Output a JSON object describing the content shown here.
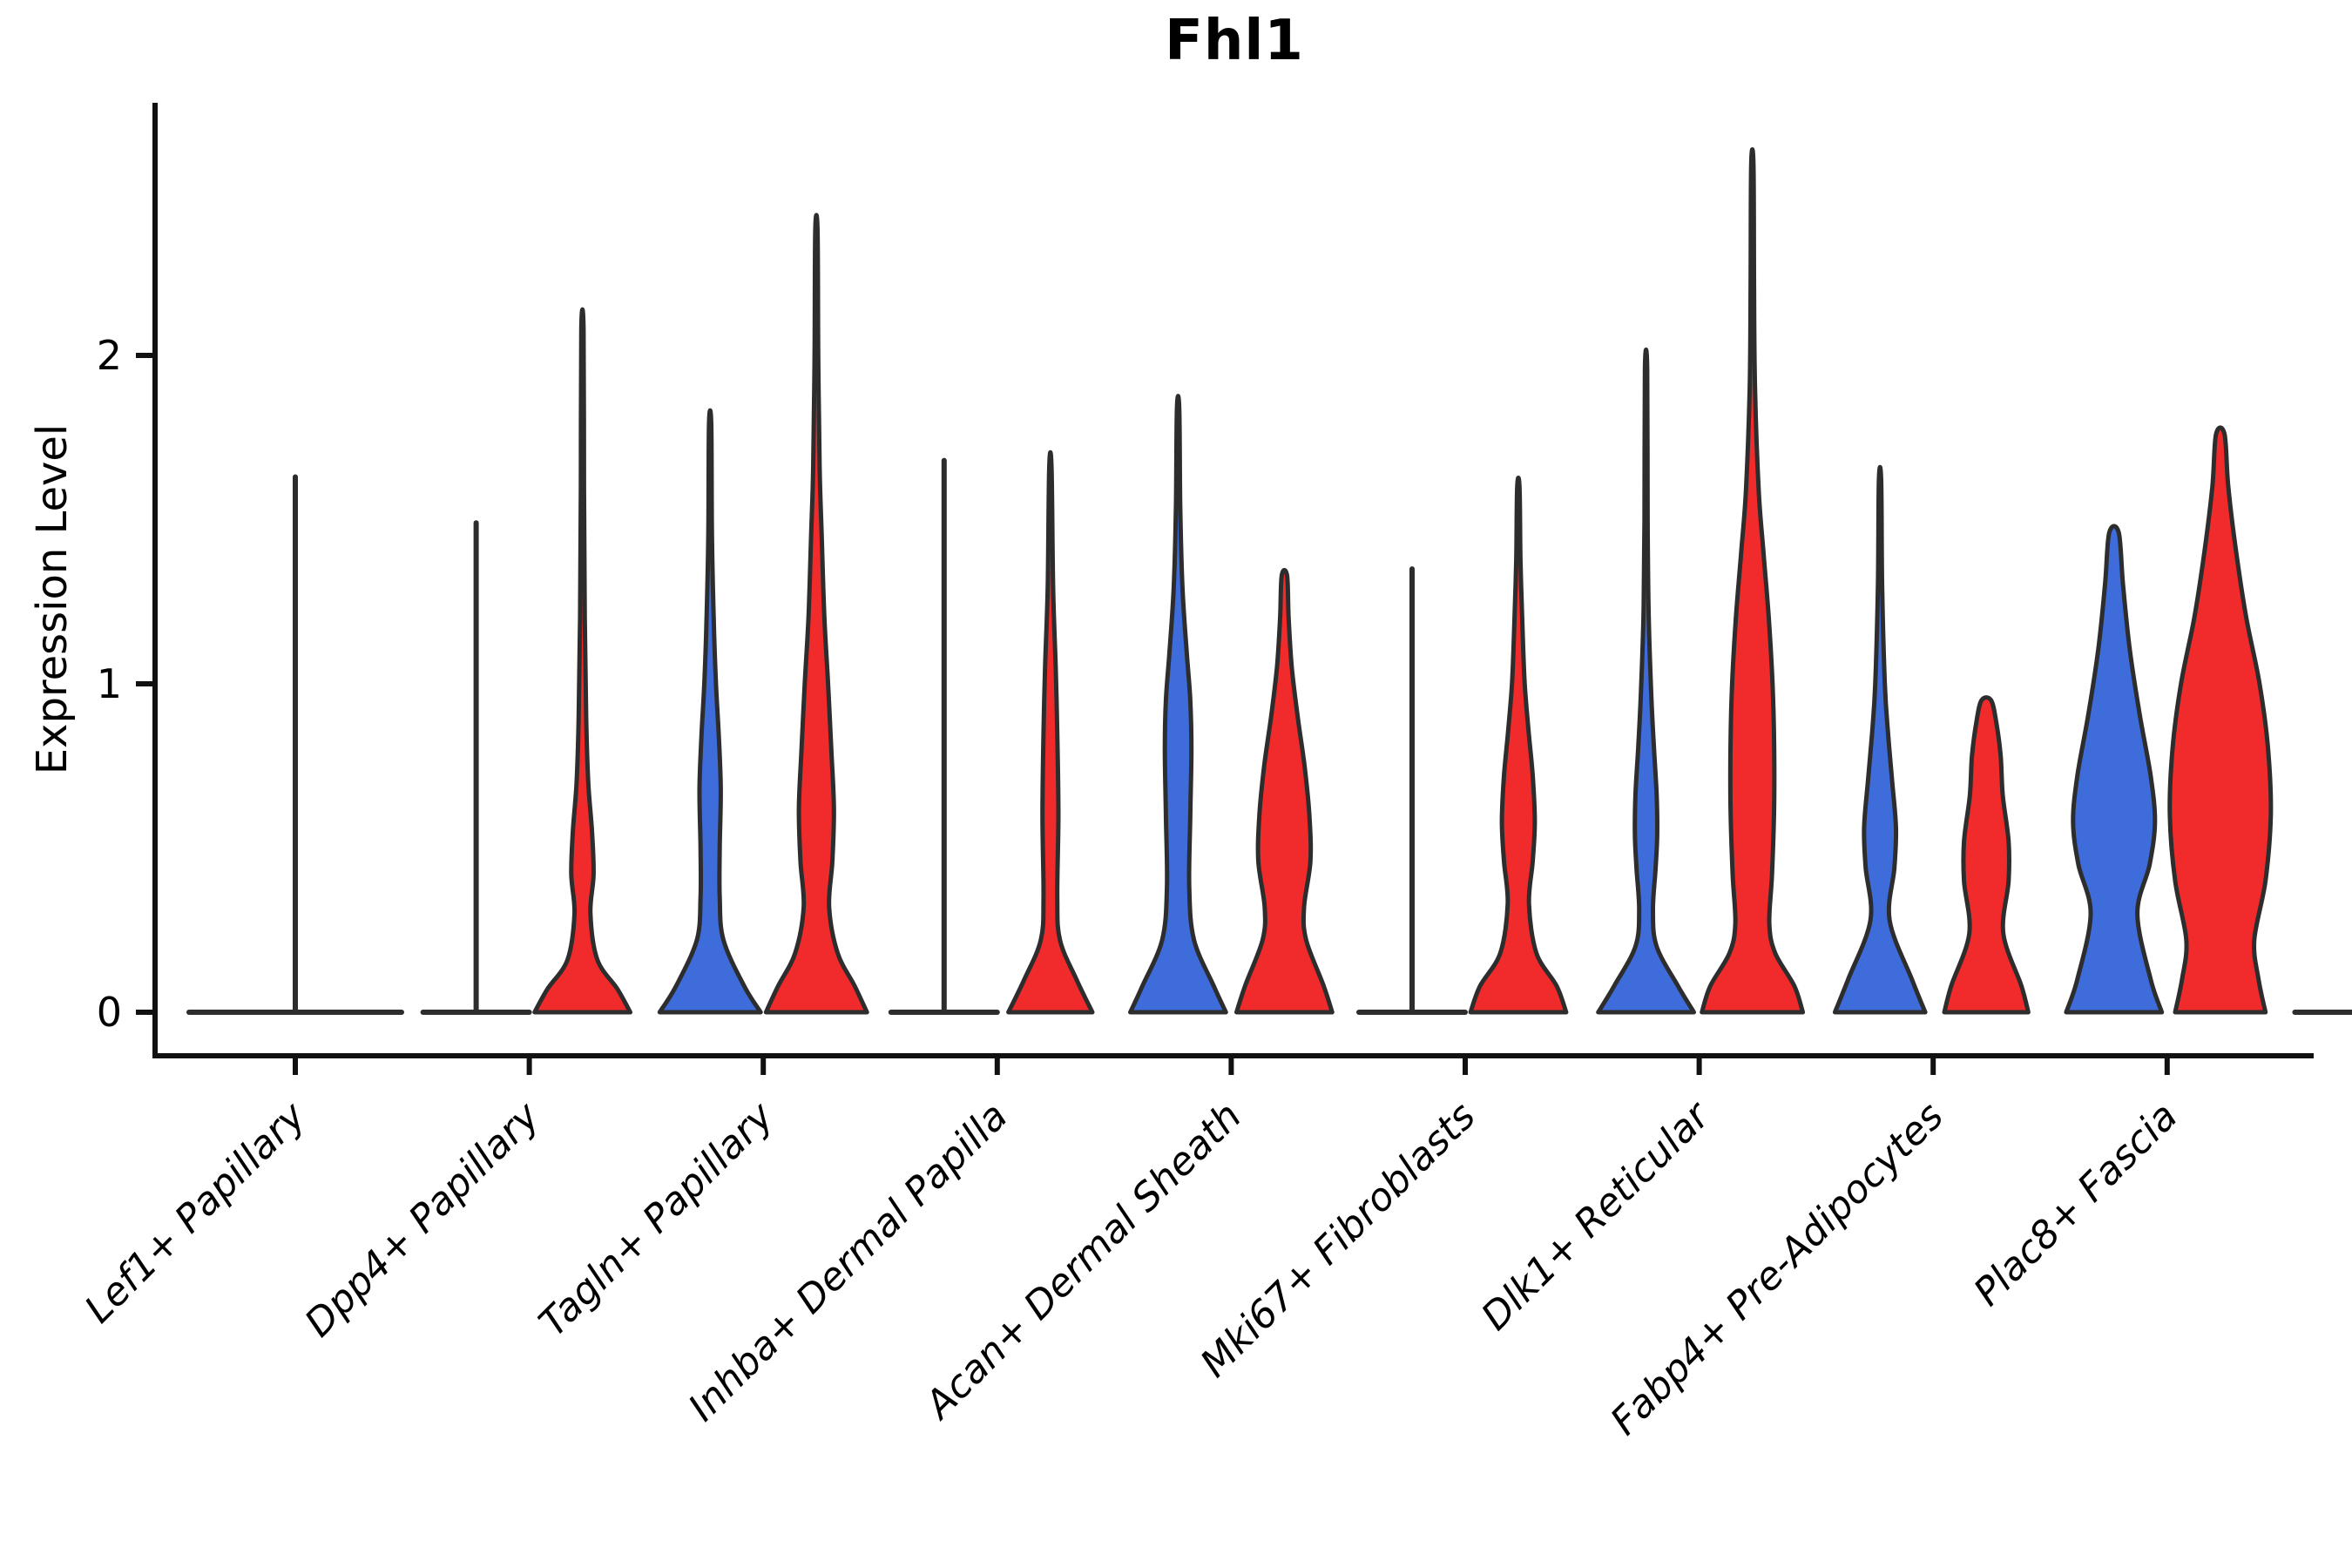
{
  "chart_data": {
    "type": "violin",
    "title": "Fhl1",
    "ylabel": "Expression Level",
    "xlabel": "",
    "yticks": [
      "0",
      "1",
      "2"
    ],
    "ylim": [
      -0.13,
      2.77
    ],
    "grid": false,
    "legend": "none",
    "split_colors": {
      "blue": "#3E6CDB",
      "red": "#F12B2B"
    },
    "outline_color": "#2D2D2D",
    "axis_color": "#111111",
    "text_color": "#000000",
    "groups": [
      {
        "label": "Lef1+ Papillary",
        "violins": [
          {
            "split": "merged",
            "pos": 0,
            "shape": "flat-spike",
            "span": 2,
            "max": 1.63
          }
        ]
      },
      {
        "label": "Dpp4+ Papillary",
        "violins": [
          {
            "split": "blue",
            "pos": -1,
            "shape": "flat-spike",
            "span": 1,
            "max": 1.49
          },
          {
            "split": "red",
            "pos": 1,
            "shape": "density",
            "max": 2.08,
            "profile": [
              [
                0,
                0.9
              ],
              [
                0.07,
                0.66
              ],
              [
                0.16,
                0.28
              ],
              [
                0.3,
                0.15
              ],
              [
                0.42,
                0.21
              ],
              [
                0.55,
                0.18
              ],
              [
                0.7,
                0.11
              ],
              [
                0.9,
                0.07
              ],
              [
                1.2,
                0.045
              ],
              [
                1.6,
                0.03
              ],
              [
                2.08,
                0.022
              ]
            ]
          }
        ]
      },
      {
        "label": "Tagln+ Papillary",
        "violins": [
          {
            "split": "blue",
            "pos": -1,
            "shape": "density",
            "max": 1.79,
            "profile": [
              [
                0,
                0.95
              ],
              [
                0.08,
                0.64
              ],
              [
                0.22,
                0.25
              ],
              [
                0.35,
                0.18
              ],
              [
                0.5,
                0.18
              ],
              [
                0.68,
                0.2
              ],
              [
                0.85,
                0.16
              ],
              [
                1.0,
                0.11
              ],
              [
                1.18,
                0.07
              ],
              [
                1.45,
                0.035
              ],
              [
                1.79,
                0.022
              ]
            ]
          },
          {
            "split": "red",
            "pos": 1,
            "shape": "density",
            "max": 2.38,
            "profile": [
              [
                0,
                0.95
              ],
              [
                0.08,
                0.72
              ],
              [
                0.18,
                0.4
              ],
              [
                0.32,
                0.24
              ],
              [
                0.46,
                0.3
              ],
              [
                0.62,
                0.33
              ],
              [
                0.8,
                0.28
              ],
              [
                1.0,
                0.22
              ],
              [
                1.2,
                0.15
              ],
              [
                1.45,
                0.1
              ],
              [
                1.66,
                0.06
              ],
              [
                2.0,
                0.035
              ],
              [
                2.38,
                0.022
              ]
            ]
          }
        ]
      },
      {
        "label": "Inhba+ Dermal Papilla",
        "violins": [
          {
            "split": "blue",
            "pos": -1,
            "shape": "flat-spike",
            "span": 1,
            "max": 1.68
          },
          {
            "split": "red",
            "pos": 1,
            "shape": "density",
            "max": 1.66,
            "profile": [
              [
                0,
                0.79
              ],
              [
                0.1,
                0.49
              ],
              [
                0.22,
                0.18
              ],
              [
                0.35,
                0.13
              ],
              [
                0.6,
                0.15
              ],
              [
                0.85,
                0.13
              ],
              [
                1.05,
                0.1
              ],
              [
                1.3,
                0.05
              ],
              [
                1.66,
                0.022
              ]
            ]
          }
        ]
      },
      {
        "label": "Acan+ Dermal Sheath",
        "violins": [
          {
            "split": "blue",
            "pos": -1,
            "shape": "density",
            "max": 1.84,
            "profile": [
              [
                0,
                0.9
              ],
              [
                0.08,
                0.67
              ],
              [
                0.22,
                0.3
              ],
              [
                0.38,
                0.21
              ],
              [
                0.6,
                0.23
              ],
              [
                0.8,
                0.25
              ],
              [
                0.95,
                0.23
              ],
              [
                1.1,
                0.16
              ],
              [
                1.3,
                0.08
              ],
              [
                1.55,
                0.04
              ],
              [
                1.84,
                0.022
              ]
            ]
          },
          {
            "split": "red",
            "pos": 1,
            "shape": "density",
            "max": 1.33,
            "profile": [
              [
                0,
                0.9
              ],
              [
                0.08,
                0.74
              ],
              [
                0.22,
                0.41
              ],
              [
                0.32,
                0.37
              ],
              [
                0.46,
                0.49
              ],
              [
                0.6,
                0.47
              ],
              [
                0.75,
                0.38
              ],
              [
                0.9,
                0.25
              ],
              [
                1.05,
                0.14
              ],
              [
                1.2,
                0.08
              ],
              [
                1.33,
                0.05
              ]
            ]
          }
        ]
      },
      {
        "label": "Mki67+ Fibroblasts",
        "violins": [
          {
            "split": "blue",
            "pos": -1,
            "shape": "flat-spike",
            "span": 1,
            "max": 1.35
          },
          {
            "split": "red",
            "pos": 1,
            "shape": "density",
            "max": 1.6,
            "profile": [
              [
                0,
                0.9
              ],
              [
                0.08,
                0.72
              ],
              [
                0.18,
                0.34
              ],
              [
                0.33,
                0.2
              ],
              [
                0.46,
                0.27
              ],
              [
                0.58,
                0.31
              ],
              [
                0.72,
                0.27
              ],
              [
                0.86,
                0.19
              ],
              [
                1.0,
                0.12
              ],
              [
                1.16,
                0.08
              ],
              [
                1.38,
                0.04
              ],
              [
                1.6,
                0.022
              ]
            ]
          }
        ]
      },
      {
        "label": "Dlk1+ Reticular",
        "violins": [
          {
            "split": "blue",
            "pos": -1,
            "shape": "density",
            "max": 1.96,
            "profile": [
              [
                0,
                0.9
              ],
              [
                0.08,
                0.6
              ],
              [
                0.2,
                0.2
              ],
              [
                0.31,
                0.13
              ],
              [
                0.44,
                0.18
              ],
              [
                0.54,
                0.21
              ],
              [
                0.66,
                0.2
              ],
              [
                0.8,
                0.15
              ],
              [
                0.96,
                0.1
              ],
              [
                1.2,
                0.05
              ],
              [
                1.5,
                0.03
              ],
              [
                1.96,
                0.022
              ]
            ]
          },
          {
            "split": "red",
            "pos": 1,
            "shape": "density",
            "max": 2.58,
            "profile": [
              [
                0,
                0.95
              ],
              [
                0.08,
                0.79
              ],
              [
                0.18,
                0.43
              ],
              [
                0.27,
                0.32
              ],
              [
                0.42,
                0.37
              ],
              [
                0.62,
                0.41
              ],
              [
                0.82,
                0.41
              ],
              [
                1.0,
                0.38
              ],
              [
                1.2,
                0.31
              ],
              [
                1.4,
                0.21
              ],
              [
                1.59,
                0.12
              ],
              [
                1.9,
                0.05
              ],
              [
                2.2,
                0.032
              ],
              [
                2.58,
                0.022
              ]
            ]
          }
        ]
      },
      {
        "label": "Fabp4+ Pre-Adipocytes",
        "violins": [
          {
            "split": "blue",
            "pos": -1,
            "shape": "density",
            "max": 1.62,
            "profile": [
              [
                0,
                0.85
              ],
              [
                0.1,
                0.6
              ],
              [
                0.28,
                0.18
              ],
              [
                0.44,
                0.27
              ],
              [
                0.56,
                0.3
              ],
              [
                0.7,
                0.23
              ],
              [
                0.85,
                0.15
              ],
              [
                1.0,
                0.09
              ],
              [
                1.3,
                0.04
              ],
              [
                1.62,
                0.022
              ]
            ]
          },
          {
            "split": "red",
            "pos": 1,
            "shape": "density",
            "max": 0.95,
            "profile": [
              [
                0,
                0.79
              ],
              [
                0.08,
                0.66
              ],
              [
                0.24,
                0.32
              ],
              [
                0.4,
                0.42
              ],
              [
                0.52,
                0.42
              ],
              [
                0.66,
                0.31
              ],
              [
                0.78,
                0.27
              ],
              [
                0.88,
                0.19
              ],
              [
                0.95,
                0.09
              ]
            ]
          }
        ]
      },
      {
        "label": "Plac8+ Fascia",
        "violins": [
          {
            "split": "blue",
            "pos": -1,
            "shape": "density",
            "max": 1.46,
            "profile": [
              [
                0,
                0.9
              ],
              [
                0.1,
                0.69
              ],
              [
                0.3,
                0.44
              ],
              [
                0.45,
                0.67
              ],
              [
                0.58,
                0.77
              ],
              [
                0.72,
                0.69
              ],
              [
                0.9,
                0.49
              ],
              [
                1.1,
                0.3
              ],
              [
                1.3,
                0.17
              ],
              [
                1.46,
                0.09
              ]
            ]
          },
          {
            "split": "red",
            "pos": 1,
            "shape": "density",
            "max": 1.76,
            "profile": [
              [
                0,
                0.85
              ],
              [
                0.1,
                0.72
              ],
              [
                0.22,
                0.64
              ],
              [
                0.4,
                0.85
              ],
              [
                0.6,
                0.95
              ],
              [
                0.8,
                0.9
              ],
              [
                1.0,
                0.74
              ],
              [
                1.2,
                0.49
              ],
              [
                1.4,
                0.3
              ],
              [
                1.6,
                0.15
              ],
              [
                1.76,
                0.08
              ]
            ]
          }
        ]
      }
    ],
    "cropped_partial_group_at_right": true
  }
}
